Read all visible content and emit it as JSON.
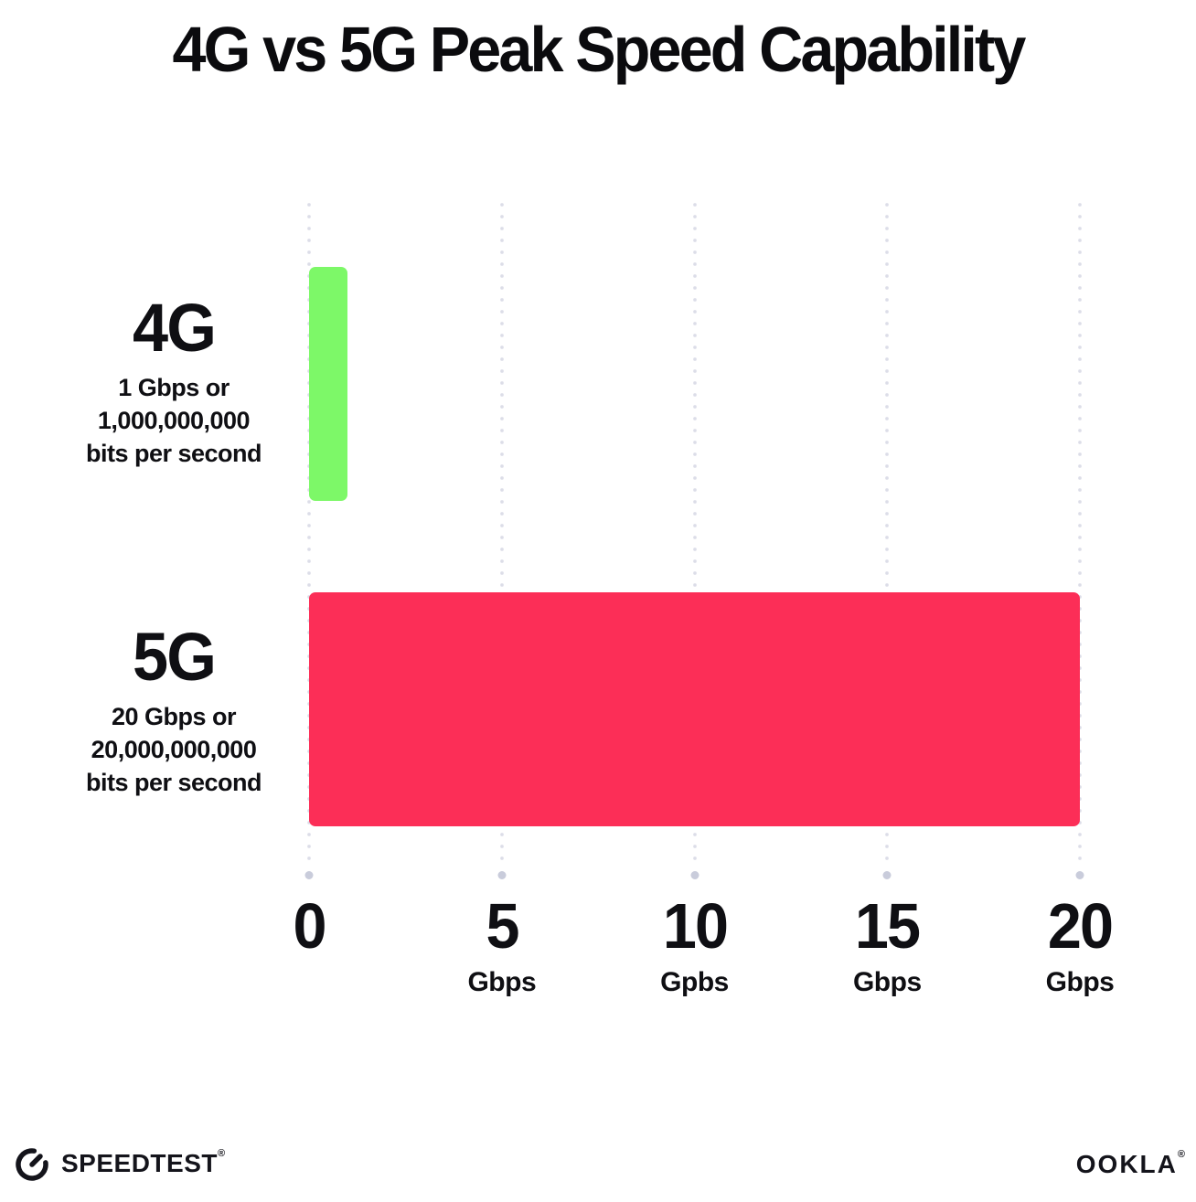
{
  "title": "4G vs 5G Peak Speed Capability",
  "chart_data": {
    "type": "bar",
    "orientation": "horizontal",
    "title": "4G vs 5G Peak Speed Capability",
    "categories": [
      "4G",
      "5G"
    ],
    "values": [
      1,
      20
    ],
    "value_unit": "Gbps",
    "series_colors": [
      "#7DF868",
      "#FC2E57"
    ],
    "bar_sublabels": [
      "1 Gbps or 1,000,000,000 bits per second",
      "20 Gbps or 20,000,000,000 bits per second"
    ],
    "xlim": [
      0,
      20
    ],
    "x_ticks": [
      0,
      5,
      10,
      15,
      20
    ],
    "x_tick_units": [
      "",
      "Gbps",
      "Gpbs",
      "Gbps",
      "Gbps"
    ],
    "xlabel": "",
    "ylabel": "",
    "grid": "dotted-vertical",
    "legend": "none"
  },
  "rows": [
    {
      "label": "4G",
      "line1": "1 Gbps or",
      "line2": "1,000,000,000",
      "line3": "bits per second"
    },
    {
      "label": "5G",
      "line1": "20 Gbps or",
      "line2": "20,000,000,000",
      "line3": "bits per second"
    }
  ],
  "axis": {
    "ticks": [
      {
        "value": "0",
        "unit": ""
      },
      {
        "value": "5",
        "unit": "Gbps"
      },
      {
        "value": "10",
        "unit": "Gpbs"
      },
      {
        "value": "15",
        "unit": "Gbps"
      },
      {
        "value": "20",
        "unit": "Gbps"
      }
    ]
  },
  "footer": {
    "speedtest_label": "SPEEDTEST",
    "speedtest_mark": "®",
    "ookla_label": "OOKLA",
    "ookla_mark": "®"
  },
  "colors": {
    "background": "#ffffff",
    "text": "#0f0f13",
    "bar_4g_green": "#7DF868",
    "bar_5g_pink": "#FC2E57",
    "gridline_dot": "#dcdde8",
    "gridline_end_dot": "#c9ccdb"
  }
}
